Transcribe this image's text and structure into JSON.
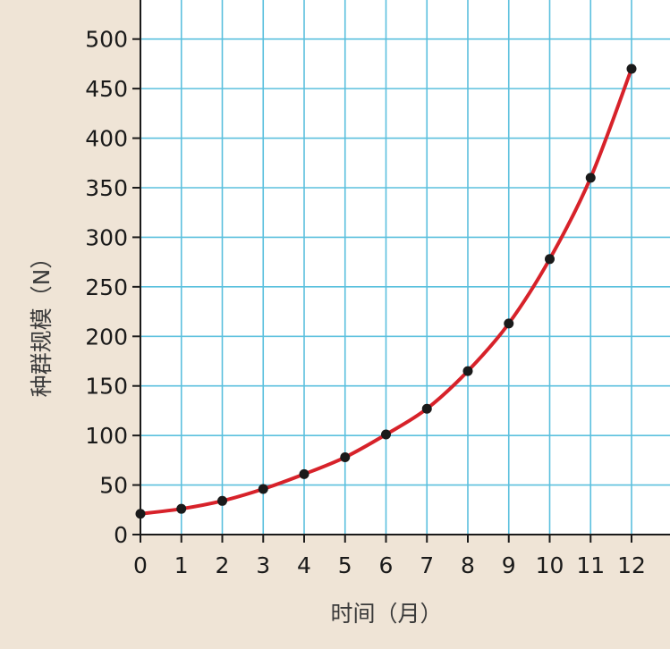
{
  "chart_data": {
    "type": "line",
    "title": "",
    "xlabel": "时间（月）",
    "ylabel": "种群规模（N）",
    "x": [
      0,
      1,
      2,
      3,
      4,
      5,
      6,
      7,
      8,
      9,
      10,
      11,
      12
    ],
    "series": [
      {
        "values": [
          21,
          26,
          34,
          46,
          61,
          78,
          101,
          127,
          165,
          213,
          278,
          360,
          470
        ]
      }
    ],
    "xlim": [
      0,
      12
    ],
    "ylim": [
      0,
      500
    ],
    "xticks": [
      "0",
      "1",
      "2",
      "3",
      "4",
      "5",
      "6",
      "7",
      "8",
      "9",
      "10",
      "11",
      "12"
    ],
    "yticks": [
      "0",
      "50",
      "100",
      "150",
      "200",
      "250",
      "300",
      "350",
      "400",
      "450",
      "500"
    ],
    "grid": true,
    "legend": "none",
    "colors": {
      "background": "#efe4d6",
      "plot_background": "#ffffff",
      "grid": "#5bc0de",
      "curve": "#d7222a",
      "points": "#1a1a1a",
      "axis": "#1a1a1a"
    }
  }
}
